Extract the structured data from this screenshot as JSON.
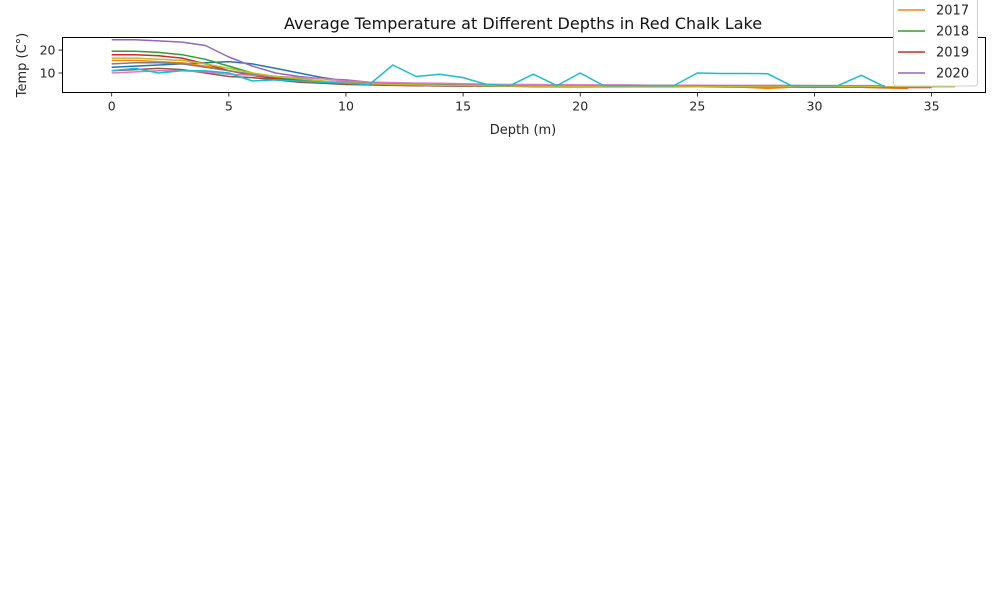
{
  "chart_data": {
    "type": "line",
    "title": "Average Temperature at Different Depths in Red Chalk Lake",
    "xlabel": "Depth (m)",
    "ylabel": "Temp (C°)",
    "xlim": [
      -2.1,
      37.3
    ],
    "ylim": [
      1.5,
      25.5
    ],
    "xticks": [
      0,
      5,
      10,
      15,
      20,
      25,
      30,
      35
    ],
    "yticks": [
      10,
      20
    ],
    "grid": false,
    "legend_position": "top-right",
    "legend_entries_visible": [
      "2017",
      "2018",
      "2019",
      "2020"
    ],
    "series": [
      {
        "color": "#1f77b4",
        "x": [
          0,
          1,
          2,
          3,
          4,
          5,
          6,
          7,
          8,
          9,
          10,
          11,
          12,
          13,
          14,
          15,
          16,
          17,
          18,
          19,
          20,
          21,
          22,
          23,
          24,
          25,
          26,
          27,
          28,
          29,
          30,
          31,
          32,
          33
        ],
        "y": [
          12.5,
          13,
          13.5,
          14,
          14.5,
          15,
          14,
          12,
          10,
          8,
          6.5,
          5.5,
          5,
          4.8,
          4.6,
          4.5,
          4.4,
          4.3,
          4.2,
          4.2,
          4.1,
          4.1,
          4,
          4,
          4,
          4,
          4,
          4,
          4,
          4,
          3.9,
          3.9,
          3.9,
          3.9
        ]
      },
      {
        "color": "#ff7f0e",
        "x": [
          0,
          1,
          2,
          3,
          4,
          5,
          6,
          7,
          8,
          9,
          10,
          11,
          12,
          13,
          14,
          15,
          16,
          17,
          18,
          19,
          20,
          21,
          22,
          23,
          24,
          25,
          26,
          27,
          28,
          29,
          30,
          31,
          32,
          33,
          34
        ],
        "y": [
          15.5,
          15.5,
          15,
          14.5,
          13,
          11,
          9,
          7.5,
          6.5,
          6,
          5.5,
          5,
          4.8,
          4.6,
          4.5,
          4.4,
          4.3,
          4.2,
          4.2,
          4.1,
          4.1,
          4,
          4,
          4,
          4,
          4,
          4,
          3.8,
          3.3,
          3.8,
          3.8,
          3.8,
          3.8,
          3.5,
          3.3
        ]
      },
      {
        "color": "#2ca02c",
        "x": [
          0,
          1,
          2,
          3,
          4,
          5,
          6,
          7,
          8,
          9,
          10,
          11,
          12,
          13,
          14,
          15,
          16,
          17,
          18,
          19,
          20,
          21,
          22,
          23,
          24,
          25,
          26,
          27,
          28,
          29,
          30,
          31,
          32,
          33
        ],
        "y": [
          19.5,
          19.5,
          19,
          18,
          16,
          13,
          10,
          8,
          7,
          6,
          5.5,
          5,
          4.8,
          4.6,
          4.5,
          4.4,
          4.3,
          4.2,
          4.2,
          4.1,
          4.1,
          4,
          4,
          4,
          4,
          4,
          4,
          4,
          4,
          4,
          4,
          4,
          4,
          4
        ]
      },
      {
        "color": "#d62728",
        "x": [
          0,
          1,
          2,
          3,
          4,
          5,
          6,
          7,
          8,
          9,
          10,
          11,
          12,
          13,
          14,
          15,
          16,
          17,
          18,
          19,
          20,
          21,
          22,
          23,
          24,
          25,
          26,
          27,
          28,
          29,
          30,
          31,
          32,
          33,
          34,
          35
        ],
        "y": [
          18,
          18,
          17.5,
          16.5,
          14,
          11,
          9,
          7.5,
          6.5,
          5.8,
          5.3,
          4.9,
          4.7,
          4.5,
          4.4,
          4.3,
          4.2,
          4.2,
          4.1,
          4.1,
          4,
          4,
          4,
          4,
          4,
          4,
          3.9,
          3.9,
          3.9,
          3.9,
          3.8,
          3.8,
          3.8,
          3.7,
          3.7,
          3.7
        ]
      },
      {
        "color": "#9467bd",
        "x": [
          0,
          1,
          2,
          3,
          4,
          5,
          6,
          7,
          8,
          9,
          10,
          11,
          12,
          13,
          14,
          15,
          16,
          17,
          18,
          19,
          20,
          21,
          22,
          23,
          24,
          25,
          26,
          27,
          28,
          29,
          30,
          31,
          32,
          33
        ],
        "y": [
          24.5,
          24.5,
          24,
          23.5,
          22,
          17,
          13,
          10,
          8.5,
          7.5,
          7,
          6,
          5.5,
          5.2,
          5,
          4.9,
          4.8,
          4.7,
          4.6,
          4.6,
          4.5,
          4.5,
          4.5,
          4.5,
          4.4,
          4.4,
          4.4,
          4.4,
          4.3,
          4.3,
          4.3,
          4.3,
          4.3,
          4.3
        ]
      },
      {
        "color": "#8c564b",
        "x": [
          0,
          1,
          2,
          3,
          4,
          5,
          6,
          7,
          8,
          9,
          10,
          11,
          12,
          13,
          14,
          15,
          16,
          17,
          18,
          19,
          20,
          21,
          22,
          23,
          24,
          25,
          26,
          27,
          28,
          29,
          30,
          31,
          32,
          33
        ],
        "y": [
          11,
          11.5,
          12,
          11.5,
          10,
          8.5,
          8,
          7,
          6,
          5.5,
          5,
          4.8,
          4.6,
          4.5,
          4.4,
          4.3,
          4.2,
          4.2,
          4.1,
          4.1,
          4,
          4,
          4,
          4,
          4,
          4,
          4,
          4,
          4,
          4,
          3.9,
          3.9,
          3.9,
          3.9
        ]
      },
      {
        "color": "#e377c2",
        "x": [
          0,
          1,
          2,
          3,
          4,
          5,
          6,
          7,
          8,
          9,
          10,
          11,
          12,
          13,
          14,
          15,
          16,
          17,
          18,
          19,
          20,
          21,
          22,
          23,
          24,
          25,
          26,
          27,
          28,
          29,
          30,
          31,
          32,
          33
        ],
        "y": [
          10,
          10.5,
          11,
          11,
          10.5,
          9.5,
          9,
          8.5,
          8,
          7.5,
          6.5,
          6,
          5.8,
          5.6,
          5.5,
          5.3,
          5.1,
          5,
          5,
          4.9,
          4.9,
          4.8,
          4.8,
          4.7,
          4.7,
          4.7,
          4.6,
          4.6,
          4.6,
          4.6,
          4.5,
          4.5,
          4.5,
          4.5
        ]
      },
      {
        "color": "#7f7f7f",
        "x": [
          0,
          1,
          2,
          3,
          4,
          5,
          6,
          7,
          8,
          9,
          10,
          11,
          12,
          13,
          14,
          15,
          16,
          17,
          18,
          19,
          20,
          21,
          22,
          23,
          24,
          25,
          26,
          27,
          28,
          29,
          30,
          31,
          32,
          33
        ],
        "y": [
          14,
          14.5,
          14.5,
          14,
          12.5,
          11,
          9.5,
          8.5,
          7.5,
          6.5,
          6,
          5.5,
          5.2,
          5,
          4.8,
          4.7,
          4.6,
          4.5,
          4.5,
          4.4,
          4.4,
          4.3,
          4.3,
          4.3,
          4.3,
          4.2,
          4.2,
          4.2,
          4.2,
          4.2,
          4.1,
          4.1,
          4.1,
          4.1
        ]
      },
      {
        "color": "#bcbd22",
        "x": [
          0,
          1,
          2,
          3,
          4,
          5,
          6,
          7,
          8,
          9,
          10,
          11,
          12,
          13,
          14,
          15,
          16,
          17,
          18,
          19,
          20,
          21,
          22,
          23,
          24,
          25,
          26,
          27,
          28,
          29,
          30,
          31,
          32,
          33,
          34,
          35,
          36
        ],
        "y": [
          16.5,
          16.5,
          16,
          15.5,
          14,
          12,
          10,
          8.5,
          7.5,
          6.5,
          5.8,
          5.3,
          5,
          4.8,
          4.6,
          4.5,
          4.4,
          4.3,
          4.3,
          4.2,
          4.2,
          4.1,
          4.1,
          4.1,
          4.1,
          4,
          4,
          4,
          4,
          4,
          4,
          4,
          4,
          4,
          4,
          4,
          4
        ]
      },
      {
        "color": "#17becf",
        "x": [
          0,
          1,
          2,
          3,
          4,
          5,
          6,
          7,
          8,
          9,
          10,
          11,
          12,
          13,
          14,
          15,
          16,
          17,
          18,
          19,
          20,
          21,
          22,
          23,
          24,
          25,
          26,
          27,
          28,
          29,
          30,
          31,
          32,
          33
        ],
        "y": [
          11,
          12,
          10,
          11,
          11,
          10,
          6.5,
          7,
          6.5,
          6,
          5.5,
          5,
          13.5,
          8.5,
          9.5,
          8,
          5,
          4.5,
          9.5,
          4.5,
          10,
          4.5,
          4.5,
          4.5,
          4.5,
          10,
          9.8,
          9.8,
          9.7,
          4.5,
          4.5,
          4.5,
          9,
          4
        ]
      }
    ]
  }
}
